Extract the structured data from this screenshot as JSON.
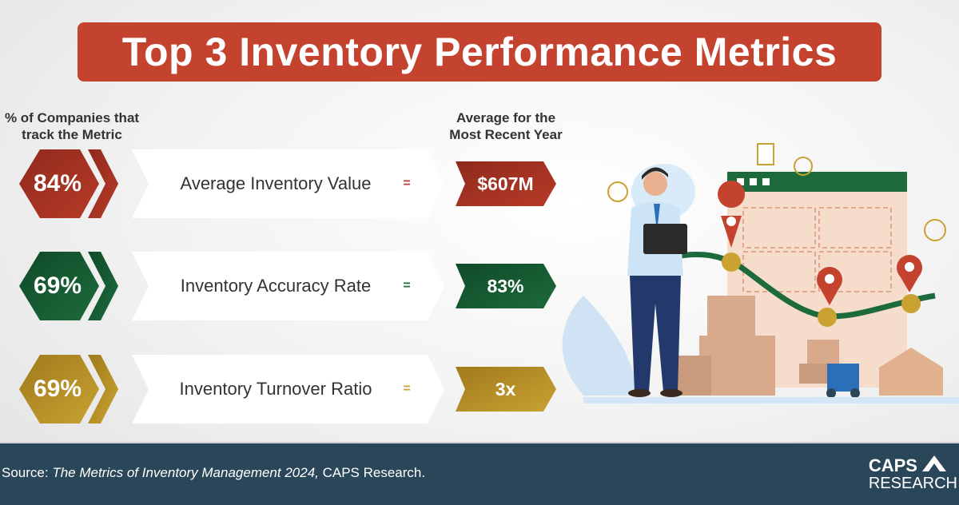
{
  "title": "Top 3 Inventory Performance Metrics",
  "column_headers": {
    "left": [
      "% of Companies that",
      "track the Metric"
    ],
    "right": [
      "Average for the",
      "Most Recent Year"
    ]
  },
  "metrics": [
    {
      "percent": "84%",
      "label": "Average Inventory Value",
      "equals": "=",
      "value": "$607M",
      "color": "#b83a28"
    },
    {
      "percent": "69%",
      "label": "Inventory Accuracy Rate",
      "equals": "=",
      "value": "83%",
      "color": "#1d6b3c"
    },
    {
      "percent": "69%",
      "label": "Inventory Turnover Ratio",
      "equals": "=",
      "value": "3x",
      "color": "#c9a232"
    }
  ],
  "footer": {
    "source_prefix": "Source: ",
    "source_title": "The Metrics of Inventory Management 2024,",
    "source_suffix": " CAPS Research.",
    "logo_top": "CAPS",
    "logo_bottom": "RESEARCH"
  }
}
